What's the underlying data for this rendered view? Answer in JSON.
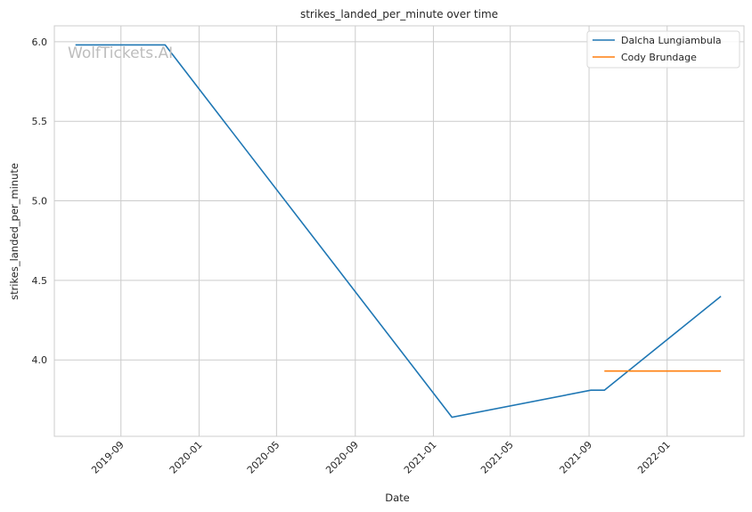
{
  "chart_data": {
    "type": "line",
    "title": "strikes_landed_per_minute over time",
    "xlabel": "Date",
    "ylabel": "strikes_landed_per_minute",
    "watermark": "WolfTickets.AI",
    "x_ticks": [
      "2019-09",
      "2020-01",
      "2020-05",
      "2020-09",
      "2021-01",
      "2021-05",
      "2021-09",
      "2022-01"
    ],
    "y_ticks": [
      "4.0",
      "4.5",
      "5.0",
      "5.5",
      "6.0"
    ],
    "xlim": [
      "2019-05-20",
      "2022-05-01"
    ],
    "ylim": [
      3.52,
      6.1
    ],
    "grid": true,
    "legend_position": "top-right",
    "series": [
      {
        "name": "Dalcha Lungiambula",
        "color": "#1f77b4",
        "points": [
          {
            "x": "2019-06-22",
            "y": 5.98
          },
          {
            "x": "2019-11-09",
            "y": 5.98
          },
          {
            "x": "2021-01-30",
            "y": 3.64
          },
          {
            "x": "2021-09-04",
            "y": 3.81
          },
          {
            "x": "2021-09-25",
            "y": 3.81
          },
          {
            "x": "2022-03-26",
            "y": 4.4
          }
        ]
      },
      {
        "name": "Cody Brundage",
        "color": "#ff7f0e",
        "points": [
          {
            "x": "2021-09-25",
            "y": 3.93
          },
          {
            "x": "2022-03-26",
            "y": 3.93
          }
        ]
      }
    ]
  }
}
